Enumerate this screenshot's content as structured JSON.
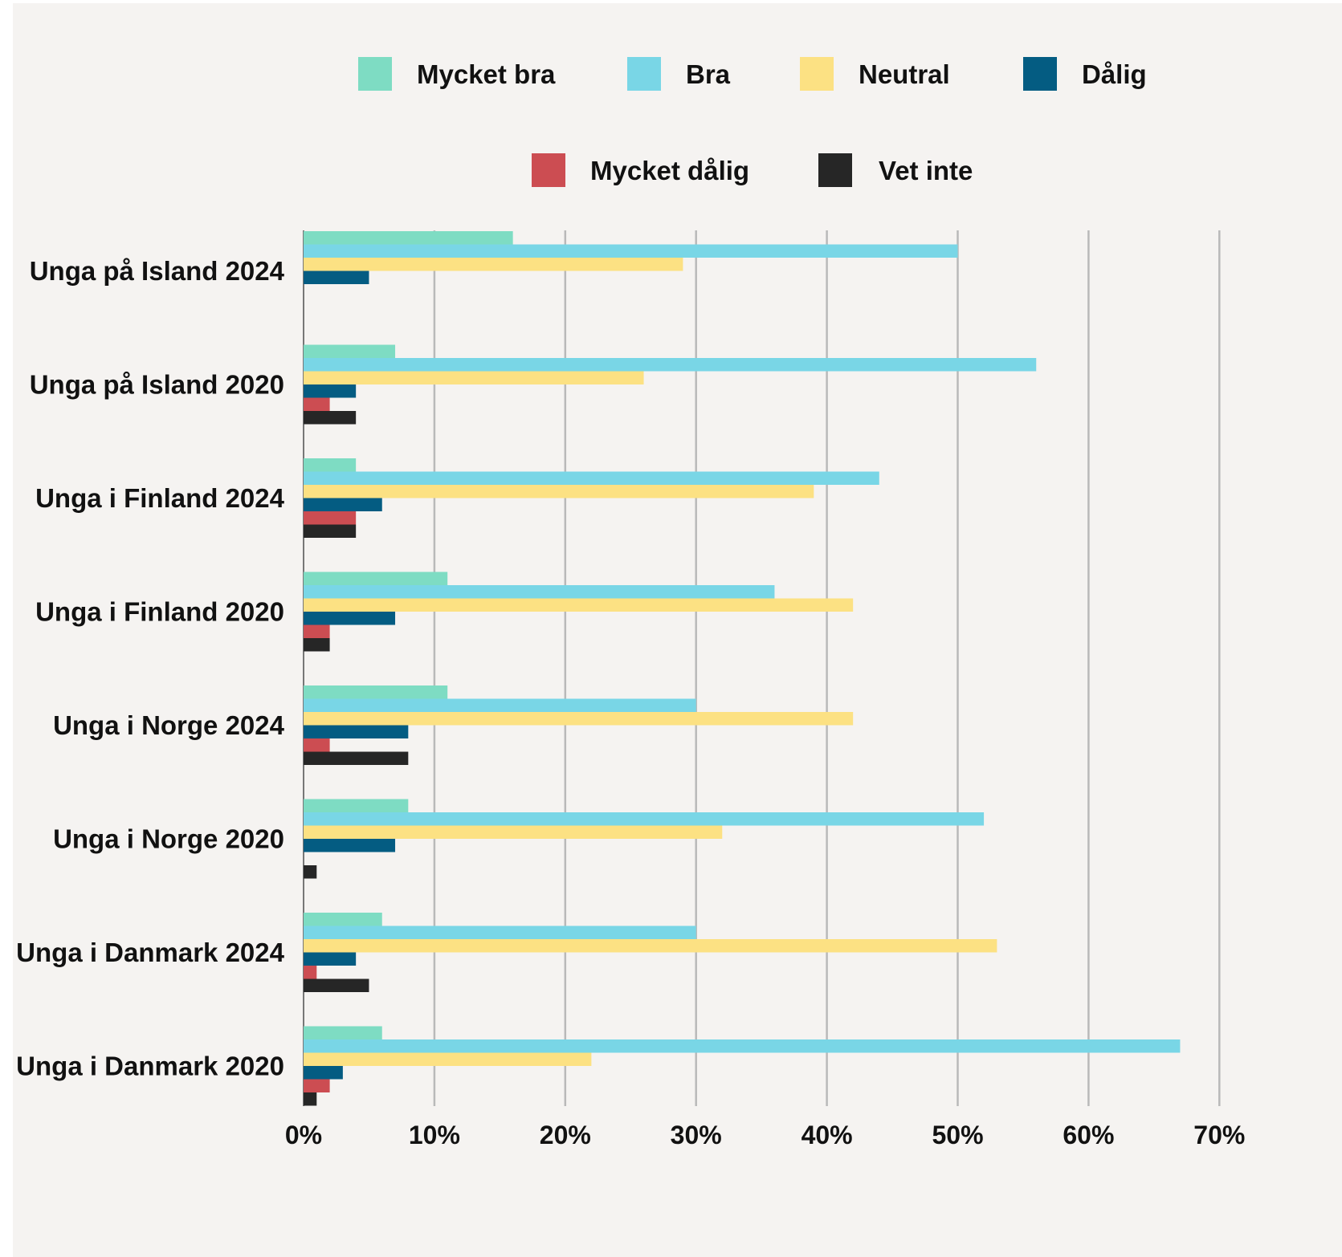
{
  "chart_data": {
    "type": "bar",
    "orientation": "horizontal",
    "categories": [
      "Unga på Island 2024",
      "Unga på Island 2020",
      "Unga i Finland 2024",
      "Unga i Finland 2020",
      "Unga i Norge 2024",
      "Unga i Norge 2020",
      "Unga i Danmark 2024",
      "Unga i Danmark 2020"
    ],
    "series": [
      {
        "name": "Mycket bra",
        "color": "#7edcc3",
        "values": [
          16,
          7,
          4,
          11,
          11,
          8,
          6,
          6
        ]
      },
      {
        "name": "Bra",
        "color": "#79d6e6",
        "values": [
          50,
          56,
          44,
          36,
          30,
          52,
          30,
          67
        ]
      },
      {
        "name": "Neutral",
        "color": "#fce183",
        "values": [
          29,
          26,
          39,
          42,
          42,
          32,
          53,
          22
        ]
      },
      {
        "name": "Dålig",
        "color": "#045c82",
        "values": [
          5,
          4,
          6,
          7,
          8,
          7,
          4,
          3
        ]
      },
      {
        "name": "Mycket dålig",
        "color": "#cc4d52",
        "values": [
          0,
          2,
          4,
          2,
          2,
          0,
          1,
          2
        ]
      },
      {
        "name": "Vet inte",
        "color": "#262626",
        "values": [
          0,
          4,
          4,
          2,
          8,
          1,
          5,
          1
        ]
      }
    ],
    "xlim": [
      0,
      70
    ],
    "xticks": [
      "0%",
      "10%",
      "20%",
      "30%",
      "40%",
      "50%",
      "60%",
      "70%"
    ],
    "grid": "vertical",
    "legend": "top"
  }
}
